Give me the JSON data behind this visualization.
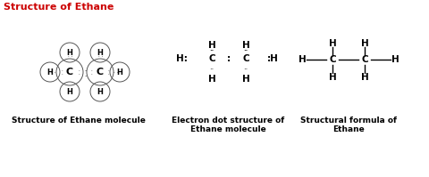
{
  "title": "Structure of Ethane",
  "title_color": "#cc0000",
  "bg_color": "#ffffff",
  "caption1": "Structure of Ethane molecule",
  "caption2": "Electron dot structure of\nEthane molecule",
  "caption3": "Structural formula of\nEthane",
  "figsize": [
    4.8,
    1.99
  ],
  "dpi": 100
}
